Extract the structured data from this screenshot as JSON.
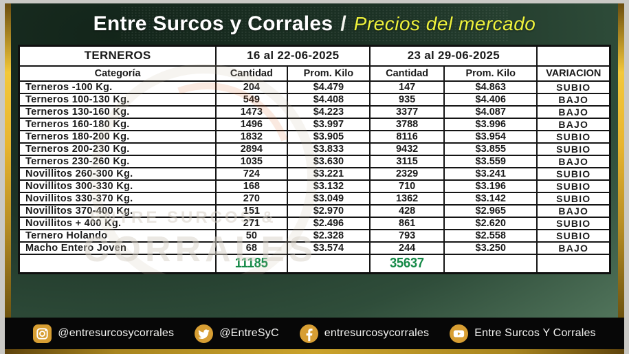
{
  "title": {
    "main": "Entre Surcos y Corrales",
    "separator": "/",
    "sub": "Precios del mercado"
  },
  "table": {
    "group_header": {
      "category": "TERNEROS",
      "period1": "16 al 22-06-2025",
      "period2": "23 al 29-06-2025",
      "variation": ""
    },
    "column_headers": {
      "category": "Categoría",
      "qty1": "Cantidad",
      "avg1": "Prom. Kilo",
      "qty2": "Cantidad",
      "avg2": "Prom. Kilo",
      "variation": "VARIACION"
    },
    "up_value": "SUBIO",
    "down_value": "BAJO",
    "rows": [
      {
        "category": "Terneros -100 Kg.",
        "qty1": "204",
        "avg1": "$4.479",
        "qty2": "147",
        "avg2": "$4.863",
        "variation": "SUBIO"
      },
      {
        "category": "Terneros 100-130 Kg.",
        "qty1": "549",
        "avg1": "$4.408",
        "qty2": "935",
        "avg2": "$4.406",
        "variation": "BAJO"
      },
      {
        "category": "Terneros 130-160 Kg.",
        "qty1": "1473",
        "avg1": "$4.223",
        "qty2": "3377",
        "avg2": "$4.087",
        "variation": "BAJO"
      },
      {
        "category": "Terneros 160-180 Kg.",
        "qty1": "1496",
        "avg1": "$3.997",
        "qty2": "3788",
        "avg2": "$3.996",
        "variation": "BAJO"
      },
      {
        "category": "Terneros 180-200 Kg.",
        "qty1": "1832",
        "avg1": "$3.905",
        "qty2": "8116",
        "avg2": "$3.954",
        "variation": "SUBIO"
      },
      {
        "category": "Terneros 200-230 Kg.",
        "qty1": "2894",
        "avg1": "$3.833",
        "qty2": "9432",
        "avg2": "$3.855",
        "variation": "SUBIO"
      },
      {
        "category": "Terneros 230-260 Kg.",
        "qty1": "1035",
        "avg1": "$3.630",
        "qty2": "3115",
        "avg2": "$3.559",
        "variation": "BAJO"
      },
      {
        "category": "Novillitos 260-300 Kg.",
        "qty1": "724",
        "avg1": "$3.221",
        "qty2": "2329",
        "avg2": "$3.241",
        "variation": "SUBIO"
      },
      {
        "category": "Novillitos 300-330 Kg.",
        "qty1": "168",
        "avg1": "$3.132",
        "qty2": "710",
        "avg2": "$3.196",
        "variation": "SUBIO"
      },
      {
        "category": "Novillitos 330-370 Kg.",
        "qty1": "270",
        "avg1": "$3.049",
        "qty2": "1362",
        "avg2": "$3.142",
        "variation": "SUBIO"
      },
      {
        "category": "Novillitos 370-400 Kg.",
        "qty1": "151",
        "avg1": "$2.970",
        "qty2": "428",
        "avg2": "$2.965",
        "variation": "BAJO"
      },
      {
        "category": "Novillitos + 400 Kg.",
        "qty1": "271",
        "avg1": "$2.496",
        "qty2": "861",
        "avg2": "$2.620",
        "variation": "SUBIO"
      },
      {
        "category": "Ternero Holando",
        "qty1": "50",
        "avg1": "$2.328",
        "qty2": "793",
        "avg2": "$2.558",
        "variation": "SUBIO"
      },
      {
        "category": "Macho Entero Joven",
        "qty1": "68",
        "avg1": "$3.574",
        "qty2": "244",
        "avg2": "$3.250",
        "variation": "BAJO"
      }
    ],
    "totals": {
      "qty1": "11185",
      "qty2": "35637"
    }
  },
  "watermark": {
    "line1": "ENTRE SURCOS &",
    "line2": "CORRALES"
  },
  "footer": {
    "items": [
      {
        "icon": "instagram",
        "label": "@entresurcosycorrales"
      },
      {
        "icon": "twitter",
        "label": "@EntreSyC"
      },
      {
        "icon": "facebook",
        "label": "entresurcosycorrales"
      },
      {
        "icon": "youtube",
        "label": "Entre Surcos Y Corrales"
      }
    ]
  },
  "colors": {
    "up_green": "#1a8038",
    "down_red": "#e03131",
    "totals_green": "#168a48",
    "accent_yellow": "#eef23c",
    "gold": "#d79e33",
    "footer_black": "#070707"
  }
}
